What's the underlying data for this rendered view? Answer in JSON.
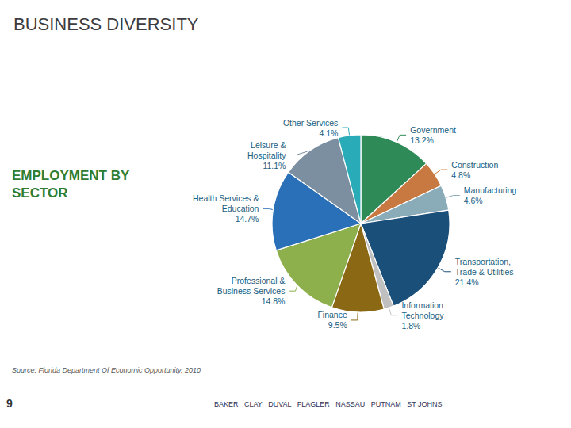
{
  "chart_data": {
    "type": "pie",
    "title": "BUSINESS DIVERSITY",
    "subtitle": "EMPLOYMENT BY\nSECTOR",
    "annotations": [
      "Source: Florida Department Of Economic Opportunity, 2010",
      "9",
      "BAKER   CLAY   DUVAL   FLAGLER   NASSAU   PUTNAM   ST JOHNS"
    ],
    "categories": [
      "Government",
      "Construction",
      "Manufacturing",
      "Transportation,\nTrade & Utilities",
      "Information\nTechnology",
      "Finance",
      "Professional &\nBusiness Services",
      "Health Services &\nEducation",
      "Leisure &\nHospitality",
      "Other Services"
    ],
    "values": [
      13.2,
      4.8,
      4.6,
      21.4,
      1.8,
      9.5,
      14.8,
      14.7,
      11.1,
      4.1
    ],
    "value_labels": [
      "13.2%",
      "4.8%",
      "4.6%",
      "21.4%",
      "1.8%",
      "9.5%",
      "14.8%",
      "14.7%",
      "11.1%",
      "4.1%"
    ],
    "colors": [
      "#2e8b57",
      "#c87941",
      "#8aabb8",
      "#1a4f7a",
      "#c0c0c0",
      "#8b6914",
      "#8db04d",
      "#2970b8",
      "#7b8fa0",
      "#2aacb8"
    ],
    "data_labels": true,
    "legend": false
  }
}
